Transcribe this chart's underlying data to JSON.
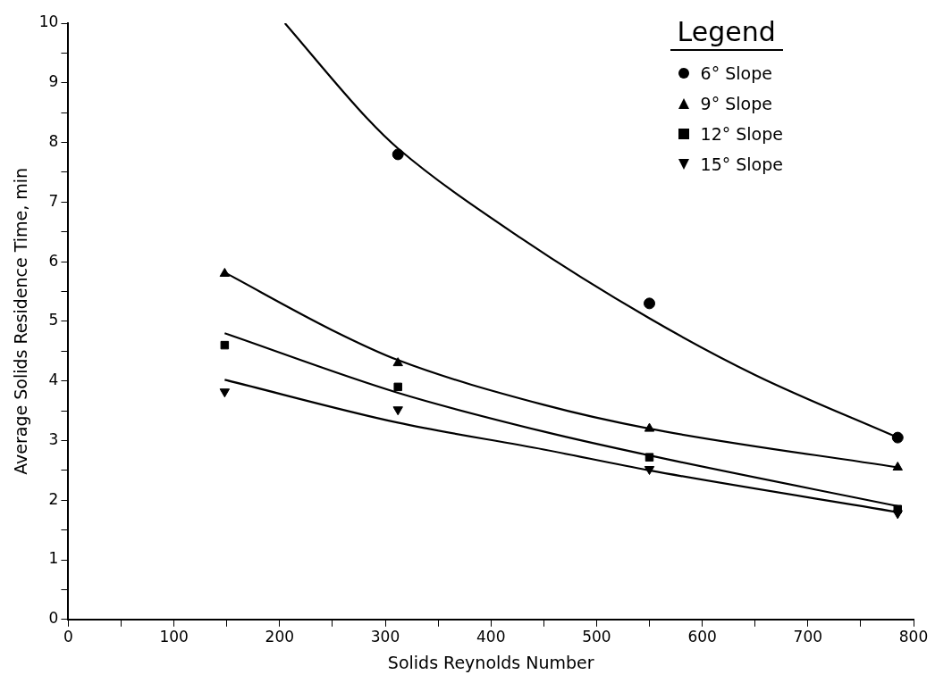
{
  "chart_data": {
    "type": "scatter",
    "xlabel": "Solids Reynolds Number",
    "ylabel": "Average Solids Residence Time, min",
    "legend_title": "Legend",
    "legend": "top right",
    "grid": false,
    "xlim": [
      0,
      800
    ],
    "xticks": [
      0,
      {
        "value": 50,
        "label": null
      },
      100,
      {
        "value": 150,
        "label": null
      },
      200,
      {
        "value": 250,
        "label": null
      },
      300,
      {
        "value": 350,
        "label": null
      },
      400,
      {
        "value": 450,
        "label": null
      },
      500,
      {
        "value": 550,
        "label": null
      },
      600,
      {
        "value": 650,
        "label": null
      },
      700,
      {
        "value": 750,
        "label": null
      },
      800
    ],
    "ylim": [
      0,
      10
    ],
    "yticks": [
      0,
      {
        "value": 0.5,
        "label": null
      },
      1,
      {
        "value": 1.5,
        "label": null
      },
      2,
      {
        "value": 2.5,
        "label": null
      },
      3,
      {
        "value": 3.5,
        "label": null
      },
      4,
      {
        "value": 4.5,
        "label": null
      },
      5,
      {
        "value": 5.5,
        "label": null
      },
      6,
      {
        "value": 6.5,
        "label": null
      },
      7,
      {
        "value": 7.5,
        "label": null
      },
      8,
      {
        "value": 8.5,
        "label": null
      },
      9,
      {
        "value": 9.5,
        "label": null
      },
      10
    ],
    "series": [
      {
        "name": "6° Slope",
        "type": "scatter",
        "marker": "circle",
        "color": "#000000",
        "x": [
          312,
          550,
          785
        ],
        "values": [
          7.8,
          5.3,
          3.05
        ]
      },
      {
        "name": "9° Slope",
        "type": "scatter",
        "marker": "triangle",
        "color": "#000000",
        "x": [
          148,
          312,
          550,
          785
        ],
        "values": [
          5.8,
          4.3,
          3.2,
          2.55
        ]
      },
      {
        "name": "12° Slope",
        "type": "scatter",
        "marker": "square",
        "color": "#000000",
        "x": [
          148,
          312,
          550,
          785
        ],
        "values": [
          4.6,
          3.9,
          2.72,
          1.85
        ]
      },
      {
        "name": "15° Slope",
        "type": "scatter",
        "marker": "triangle-down",
        "color": "#000000",
        "x": [
          148,
          312,
          550,
          785
        ],
        "values": [
          3.82,
          3.52,
          2.52,
          1.78
        ]
      },
      {
        "type": "line",
        "marker": "none",
        "color": "#000000",
        "x": [
          205,
          283,
          312,
          428,
          550,
          650,
          785
        ],
        "values": [
          10,
          8.4,
          7.9,
          6.4,
          5.05,
          4.1,
          3.05
        ]
      },
      {
        "type": "line",
        "marker": "none",
        "color": "#000000",
        "x": [
          150,
          250,
          312,
          450,
          550,
          785
        ],
        "values": [
          5.8,
          4.85,
          4.35,
          3.6,
          3.2,
          2.55
        ]
      },
      {
        "type": "line",
        "marker": "none",
        "color": "#000000",
        "x": [
          148,
          312,
          450,
          550,
          785
        ],
        "values": [
          4.8,
          3.8,
          3.15,
          2.75,
          1.9
        ]
      },
      {
        "type": "line",
        "marker": "none",
        "color": "#000000",
        "x": [
          148,
          312,
          450,
          550,
          785
        ],
        "values": [
          4.02,
          3.3,
          2.85,
          2.5,
          1.8
        ]
      }
    ]
  }
}
